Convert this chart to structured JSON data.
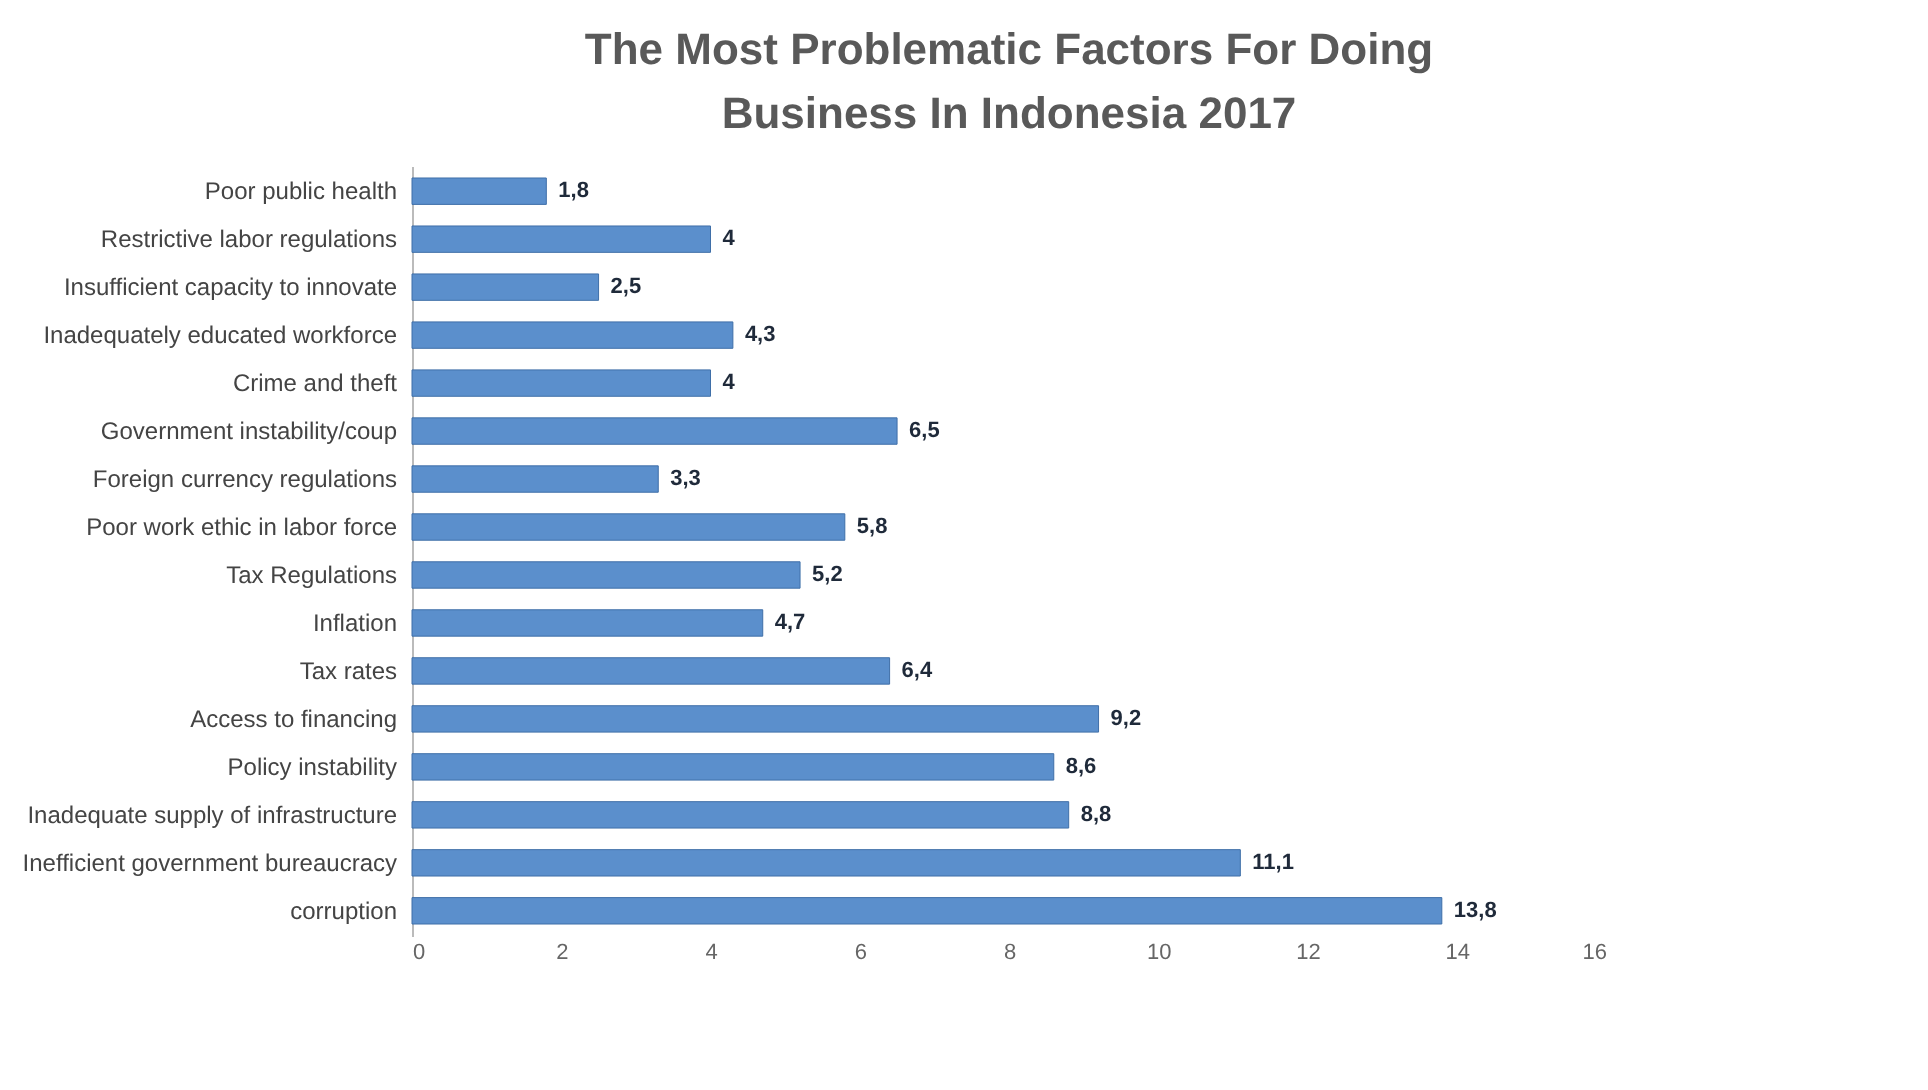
{
  "chart_data": {
    "type": "bar",
    "orientation": "horizontal",
    "title": "The Most Problematic Factors For Doing Business In Indonesia 2017",
    "categories": [
      "Poor public health",
      "Restrictive labor regulations",
      "Insufficient capacity to innovate",
      "Inadequately educated workforce",
      "Crime and theft",
      "Government instability/coup",
      "Foreign currency regulations",
      "Poor work ethic in labor force",
      "Tax Regulations",
      "Inflation",
      "Tax rates",
      "Access to financing",
      "Policy instability",
      "Inadequate supply of infrastructure",
      "Inefficient government bureaucracy",
      "corruption"
    ],
    "values": [
      1.8,
      4,
      2.5,
      4.3,
      4,
      6.5,
      3.3,
      5.8,
      5.2,
      4.7,
      6.4,
      9.2,
      8.6,
      8.8,
      11.1,
      13.8
    ],
    "value_labels": [
      "1,8",
      "4",
      "2,5",
      "4,3",
      "4",
      "6,5",
      "3,3",
      "5,8",
      "5,2",
      "4,7",
      "6,4",
      "9,2",
      "8,6",
      "8,8",
      "11,1",
      "13,8"
    ],
    "color": "#5b8fcc",
    "xlim": [
      0,
      16
    ],
    "xticks": [
      0,
      2,
      4,
      6,
      8,
      10,
      12,
      14,
      16
    ],
    "grid": false
  }
}
